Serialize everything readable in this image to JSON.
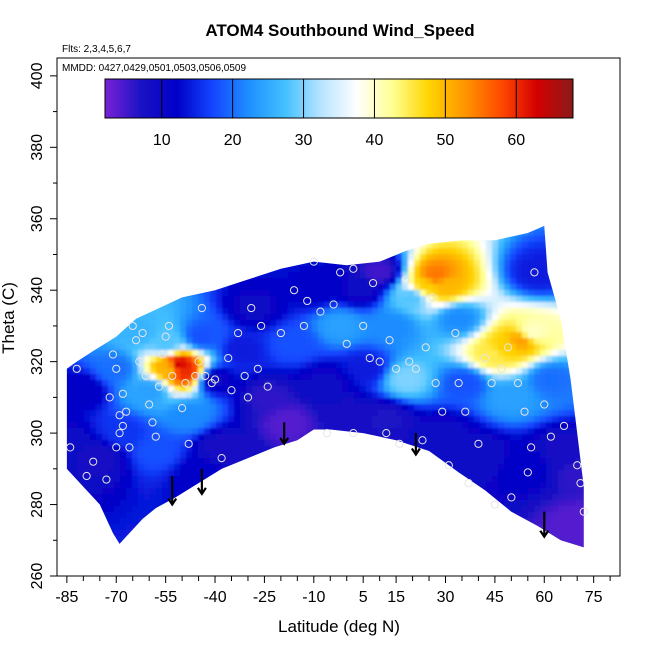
{
  "chart_data": {
    "type": "heatmap",
    "title": "ATOM4 Southbound Wind_Speed",
    "flights_note": "Flts: 2,3,4,5,6,7",
    "dates_note": "MMDD: 0427,0429,0501,0503,0506,0509",
    "xlabel": "Latitude (deg N)",
    "ylabel": "Theta (C)",
    "xlim": [
      -88,
      83
    ],
    "ylim": [
      260,
      405
    ],
    "x_ticks": [
      -85,
      -70,
      -55,
      -40,
      -25,
      -10,
      5,
      15,
      30,
      45,
      60,
      75
    ],
    "x_tick_labels": [
      "-85",
      "-70",
      "-55",
      "-40",
      "-25",
      "-10",
      "5",
      "15",
      "30",
      "45",
      "60",
      "75"
    ],
    "y_ticks": [
      260,
      280,
      300,
      320,
      340,
      360,
      380,
      400
    ],
    "y_tick_labels": [
      "260",
      "280",
      "300",
      "320",
      "340",
      "360",
      "380",
      "400"
    ],
    "colorbar": {
      "range": [
        2,
        68
      ],
      "ticks": [
        10,
        20,
        30,
        40,
        50,
        60
      ],
      "tick_labels": [
        "10",
        "20",
        "30",
        "40",
        "50",
        "60"
      ],
      "colors": [
        "#7a22d6",
        "#1a12c4",
        "#0000c8",
        "#1446ff",
        "#1e90ff",
        "#42c0ff",
        "#b8e4ff",
        "#ffffff",
        "#ffff90",
        "#ffd400",
        "#ff9500",
        "#ff4a00",
        "#d40000",
        "#8b1a1a"
      ]
    },
    "upper_boundary": [
      [
        -85,
        318
      ],
      [
        -82,
        320
      ],
      [
        -77,
        323
      ],
      [
        -70,
        327
      ],
      [
        -64,
        332
      ],
      [
        -57,
        335
      ],
      [
        -50,
        338
      ],
      [
        -40,
        340
      ],
      [
        -30,
        343
      ],
      [
        -20,
        346
      ],
      [
        -10,
        348
      ],
      [
        0,
        347
      ],
      [
        10,
        348
      ],
      [
        18,
        351
      ],
      [
        25,
        353
      ],
      [
        35,
        354
      ],
      [
        45,
        354
      ],
      [
        55,
        356
      ],
      [
        60,
        358
      ],
      [
        61,
        345
      ],
      [
        65,
        332
      ],
      [
        68,
        315
      ],
      [
        70,
        300
      ],
      [
        72,
        285
      ],
      [
        72,
        268
      ]
    ],
    "lower_boundary": [
      [
        72,
        268
      ],
      [
        65,
        270
      ],
      [
        58,
        274
      ],
      [
        50,
        278
      ],
      [
        42,
        284
      ],
      [
        34,
        289
      ],
      [
        25,
        295
      ],
      [
        15,
        298
      ],
      [
        5,
        300
      ],
      [
        -5,
        301
      ],
      [
        -10,
        301
      ],
      [
        -15,
        298
      ],
      [
        -22,
        296
      ],
      [
        -30,
        293
      ],
      [
        -38,
        290
      ],
      [
        -45,
        286
      ],
      [
        -52,
        282
      ],
      [
        -58,
        279
      ],
      [
        -62,
        276
      ],
      [
        -66,
        272
      ],
      [
        -69,
        269
      ],
      [
        -71,
        272
      ],
      [
        -75,
        280
      ],
      [
        -80,
        285
      ],
      [
        -85,
        290
      ]
    ],
    "field_values": [
      {
        "x": -85,
        "y": 296,
        "v": 9
      },
      {
        "x": -80,
        "y": 312,
        "v": 11
      },
      {
        "x": -75,
        "y": 293,
        "v": 8
      },
      {
        "x": -70,
        "y": 318,
        "v": 20
      },
      {
        "x": -68,
        "y": 300,
        "v": 16
      },
      {
        "x": -63,
        "y": 328,
        "v": 26
      },
      {
        "x": -60,
        "y": 312,
        "v": 24
      },
      {
        "x": -58,
        "y": 295,
        "v": 18
      },
      {
        "x": -55,
        "y": 325,
        "v": 28
      },
      {
        "x": -54,
        "y": 318,
        "v": 50
      },
      {
        "x": -51,
        "y": 319,
        "v": 63
      },
      {
        "x": -49,
        "y": 317,
        "v": 60
      },
      {
        "x": -48,
        "y": 305,
        "v": 22
      },
      {
        "x": -45,
        "y": 288,
        "v": 12
      },
      {
        "x": -44,
        "y": 327,
        "v": 18
      },
      {
        "x": -40,
        "y": 315,
        "v": 10
      },
      {
        "x": -38,
        "y": 296,
        "v": 8
      },
      {
        "x": -32,
        "y": 323,
        "v": 14
      },
      {
        "x": -28,
        "y": 335,
        "v": 10
      },
      {
        "x": -24,
        "y": 310,
        "v": 6
      },
      {
        "x": -18,
        "y": 303,
        "v": 4
      },
      {
        "x": -16,
        "y": 325,
        "v": 18
      },
      {
        "x": -10,
        "y": 340,
        "v": 12
      },
      {
        "x": -6,
        "y": 314,
        "v": 10
      },
      {
        "x": -2,
        "y": 330,
        "v": 24
      },
      {
        "x": 0,
        "y": 305,
        "v": 8
      },
      {
        "x": 4,
        "y": 340,
        "v": 10
      },
      {
        "x": 6,
        "y": 318,
        "v": 14
      },
      {
        "x": 10,
        "y": 345,
        "v": 5
      },
      {
        "x": 12,
        "y": 304,
        "v": 7
      },
      {
        "x": 14,
        "y": 330,
        "v": 22
      },
      {
        "x": 18,
        "y": 315,
        "v": 30
      },
      {
        "x": 20,
        "y": 338,
        "v": 28
      },
      {
        "x": 24,
        "y": 341,
        "v": 48
      },
      {
        "x": 27,
        "y": 344,
        "v": 55
      },
      {
        "x": 30,
        "y": 341,
        "v": 50
      },
      {
        "x": 30,
        "y": 300,
        "v": 10
      },
      {
        "x": 34,
        "y": 332,
        "v": 22
      },
      {
        "x": 36,
        "y": 314,
        "v": 18
      },
      {
        "x": 40,
        "y": 294,
        "v": 9
      },
      {
        "x": 44,
        "y": 322,
        "v": 45
      },
      {
        "x": 48,
        "y": 324,
        "v": 48
      },
      {
        "x": 53,
        "y": 326,
        "v": 52
      },
      {
        "x": 56,
        "y": 328,
        "v": 40
      },
      {
        "x": 50,
        "y": 310,
        "v": 24
      },
      {
        "x": 55,
        "y": 290,
        "v": 12
      },
      {
        "x": 58,
        "y": 345,
        "v": 14
      },
      {
        "x": 62,
        "y": 315,
        "v": 20
      },
      {
        "x": 66,
        "y": 295,
        "v": 8
      },
      {
        "x": 70,
        "y": 288,
        "v": 6
      },
      {
        "x": 70,
        "y": 275,
        "v": 4
      }
    ],
    "observations": [
      [
        -82,
        318
      ],
      [
        -84,
        296
      ],
      [
        -79,
        288
      ],
      [
        -77,
        292
      ],
      [
        -72,
        310
      ],
      [
        -73,
        287
      ],
      [
        -71,
        322
      ],
      [
        -70,
        318
      ],
      [
        -70,
        296
      ],
      [
        -69,
        300
      ],
      [
        -68,
        302
      ],
      [
        -69,
        305
      ],
      [
        -68,
        311
      ],
      [
        -67,
        306
      ],
      [
        -66,
        296
      ],
      [
        -65,
        330
      ],
      [
        -64,
        326
      ],
      [
        -63,
        320
      ],
      [
        -62,
        328
      ],
      [
        -61,
        316
      ],
      [
        -60,
        308
      ],
      [
        -59,
        303
      ],
      [
        -58,
        299
      ],
      [
        -57,
        313
      ],
      [
        -56,
        322
      ],
      [
        -55,
        327
      ],
      [
        -54,
        330
      ],
      [
        -53,
        316
      ],
      [
        -52,
        311
      ],
      [
        -50,
        307
      ],
      [
        -48,
        297
      ],
      [
        -49,
        314
      ],
      [
        -46,
        316
      ],
      [
        -45,
        320
      ],
      [
        -44,
        335
      ],
      [
        -43,
        316
      ],
      [
        -41,
        314
      ],
      [
        -40,
        315
      ],
      [
        -38,
        293
      ],
      [
        -36,
        321
      ],
      [
        -35,
        312
      ],
      [
        -33,
        328
      ],
      [
        -31,
        316
      ],
      [
        -30,
        310
      ],
      [
        -29,
        335
      ],
      [
        -27,
        318
      ],
      [
        -26,
        330
      ],
      [
        -24,
        313
      ],
      [
        -20,
        328
      ],
      [
        -16,
        340
      ],
      [
        -13,
        330
      ],
      [
        -12,
        337
      ],
      [
        -10,
        348
      ],
      [
        -8,
        334
      ],
      [
        -6,
        300
      ],
      [
        -4,
        336
      ],
      [
        -2,
        345
      ],
      [
        0,
        325
      ],
      [
        2,
        300
      ],
      [
        2,
        346
      ],
      [
        5,
        330
      ],
      [
        7,
        321
      ],
      [
        8,
        342
      ],
      [
        10,
        320
      ],
      [
        12,
        300
      ],
      [
        13,
        326
      ],
      [
        15,
        318
      ],
      [
        16,
        297
      ],
      [
        18,
        343
      ],
      [
        19,
        320
      ],
      [
        21,
        318
      ],
      [
        23,
        298
      ],
      [
        24,
        324
      ],
      [
        26,
        338
      ],
      [
        27,
        314
      ],
      [
        29,
        306
      ],
      [
        31,
        291
      ],
      [
        33,
        328
      ],
      [
        34,
        314
      ],
      [
        36,
        306
      ],
      [
        37,
        286
      ],
      [
        40,
        297
      ],
      [
        42,
        321
      ],
      [
        44,
        314
      ],
      [
        45,
        280
      ],
      [
        47,
        318
      ],
      [
        49,
        324
      ],
      [
        50,
        282
      ],
      [
        52,
        314
      ],
      [
        54,
        306
      ],
      [
        55,
        289
      ],
      [
        56,
        296
      ],
      [
        57,
        345
      ],
      [
        60,
        308
      ],
      [
        62,
        299
      ],
      [
        66,
        302
      ],
      [
        70,
        291
      ],
      [
        71,
        286
      ],
      [
        72,
        278
      ]
    ],
    "arrows": [
      {
        "x": -53,
        "y_top": 288,
        "y_bottom": 280
      },
      {
        "x": -44,
        "y_top": 290,
        "y_bottom": 283
      },
      {
        "x": -19,
        "y_top": 303,
        "y_bottom": 297
      },
      {
        "x": 21,
        "y_top": 300,
        "y_bottom": 294
      },
      {
        "x": 60,
        "y_top": 278,
        "y_bottom": 271
      }
    ],
    "grid": false,
    "legend_position": "top"
  }
}
